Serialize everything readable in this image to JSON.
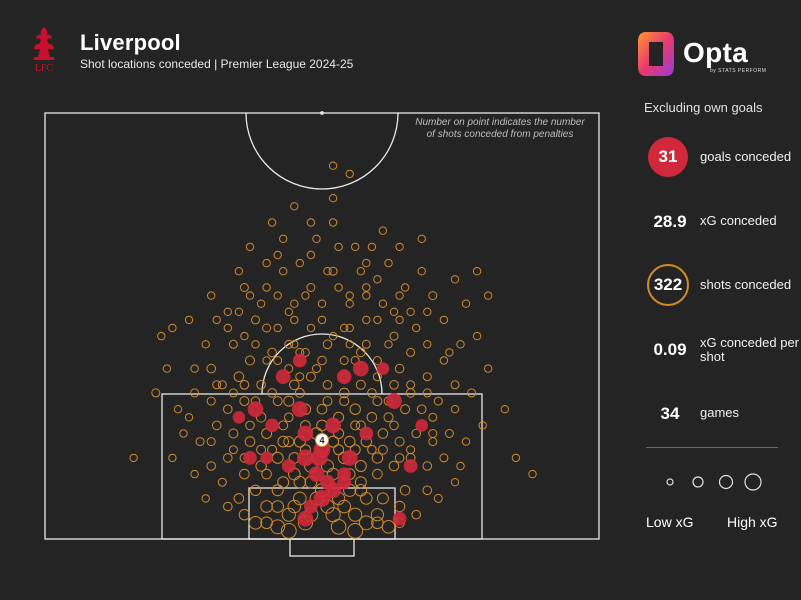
{
  "header": {
    "team": "Liverpool",
    "subtitle": "Shot locations conceded | Premier League 2024-25",
    "crest_text": "LFC"
  },
  "branding": {
    "name": "Opta",
    "tagline": "by STATS PERFORM"
  },
  "note": "Number on point indicates the number of shots conceded from penalties",
  "sidebar": {
    "header": "Excluding own goals",
    "stats": [
      {
        "value": "31",
        "label": "goals conceded"
      },
      {
        "value": "28.9",
        "label": "xG conceded"
      },
      {
        "value": "322",
        "label": "shots conceded"
      },
      {
        "value": "0.09",
        "label": "xG conceded per shot"
      },
      {
        "value": "34",
        "label": "games"
      }
    ],
    "legend": {
      "low": "Low xG",
      "high": "High xG"
    }
  },
  "colors": {
    "background": "#242424",
    "goal": "#d0293b",
    "shot": "#d08a2e",
    "lines": "#e8e8e8",
    "crest": "#c8102e"
  },
  "chart_data": {
    "type": "scatter",
    "title": "Liverpool",
    "subtitle": "Shot locations conceded | Premier League 2024-25",
    "penalty_shots": 4,
    "goals": [
      [
        54,
        20,
        0.25
      ],
      [
        46,
        16,
        0.3
      ],
      [
        50,
        11,
        0.4
      ],
      [
        49.5,
        10,
        0.35
      ],
      [
        47,
        10,
        0.4
      ],
      [
        47,
        13,
        0.3
      ],
      [
        44,
        9,
        0.2
      ],
      [
        55,
        10,
        0.3
      ],
      [
        63,
        17,
        0.3
      ],
      [
        58,
        13,
        0.2
      ],
      [
        52,
        6,
        0.3
      ],
      [
        47,
        2.5,
        0.3
      ],
      [
        50,
        5,
        0.35
      ],
      [
        54,
        7,
        0.2
      ],
      [
        38,
        16,
        0.3
      ],
      [
        41,
        14,
        0.2
      ],
      [
        43,
        20,
        0.25
      ],
      [
        37,
        10,
        0.2
      ],
      [
        40,
        10,
        0.15
      ],
      [
        35,
        15,
        0.15
      ],
      [
        46,
        22,
        0.2
      ],
      [
        61,
        21,
        0.15
      ],
      [
        68,
        14,
        0.15
      ],
      [
        66,
        9,
        0.2
      ],
      [
        64,
        2.5,
        0.2
      ],
      [
        57,
        21,
        0.3
      ],
      [
        54,
        8,
        0.2
      ],
      [
        48,
        4,
        0.2
      ],
      [
        52,
        14,
        0.3
      ],
      [
        51,
        7,
        0.25
      ],
      [
        49,
        8,
        0.3
      ]
    ],
    "shots": [
      [
        30,
        30,
        0.02
      ],
      [
        33,
        28,
        0.02
      ],
      [
        36,
        31,
        0.03
      ],
      [
        38,
        27,
        0.03
      ],
      [
        40,
        26,
        0.03
      ],
      [
        42,
        30,
        0.02
      ],
      [
        44,
        28,
        0.02
      ],
      [
        46,
        34,
        0.02
      ],
      [
        48,
        31,
        0.03
      ],
      [
        50,
        29,
        0.02
      ],
      [
        52,
        33,
        0.03
      ],
      [
        55,
        29,
        0.02
      ],
      [
        58,
        31,
        0.02
      ],
      [
        60,
        27,
        0.02
      ],
      [
        62,
        34,
        0.02
      ],
      [
        64,
        30,
        0.02
      ],
      [
        66,
        28,
        0.02
      ],
      [
        68,
        33,
        0.02
      ],
      [
        70,
        30,
        0.03
      ],
      [
        72,
        27,
        0.02
      ],
      [
        74,
        32,
        0.02
      ],
      [
        76,
        29,
        0.02
      ],
      [
        78,
        33,
        0.02
      ],
      [
        80,
        30,
        0.02
      ],
      [
        34,
        24,
        0.03
      ],
      [
        37,
        22,
        0.05
      ],
      [
        41,
        23,
        0.04
      ],
      [
        44,
        24,
        0.03
      ],
      [
        47,
        23,
        0.03
      ],
      [
        51,
        24,
        0.04
      ],
      [
        54,
        22,
        0.03
      ],
      [
        57,
        23,
        0.04
      ],
      [
        60,
        22,
        0.03
      ],
      [
        63,
        25,
        0.03
      ],
      [
        66,
        23,
        0.03
      ],
      [
        69,
        24,
        0.02
      ],
      [
        72,
        22,
        0.02
      ],
      [
        75,
        24,
        0.02
      ],
      [
        29,
        24,
        0.02
      ],
      [
        26,
        27,
        0.02
      ],
      [
        23,
        26,
        0.02
      ],
      [
        21,
        25,
        0.02
      ],
      [
        37,
        36,
        0.02
      ],
      [
        43,
        37,
        0.02
      ],
      [
        49,
        37,
        0.02
      ],
      [
        56,
        36,
        0.02
      ],
      [
        61,
        38,
        0.02
      ],
      [
        45,
        41,
        0.02
      ],
      [
        52,
        42,
        0.02
      ],
      [
        48,
        39,
        0.02
      ],
      [
        40,
        34,
        0.02
      ],
      [
        58,
        34,
        0.02
      ],
      [
        64,
        36,
        0.02
      ],
      [
        68,
        37,
        0.02
      ],
      [
        35,
        33,
        0.02
      ],
      [
        52,
        39,
        0.02
      ],
      [
        30,
        21,
        0.04
      ],
      [
        32,
        19,
        0.03
      ],
      [
        35,
        20,
        0.06
      ],
      [
        39,
        19,
        0.04
      ],
      [
        42,
        17,
        0.05
      ],
      [
        45,
        19,
        0.06
      ],
      [
        48,
        20,
        0.05
      ],
      [
        51,
        19,
        0.04
      ],
      [
        54,
        18,
        0.06
      ],
      [
        57,
        19,
        0.05
      ],
      [
        60,
        17,
        0.05
      ],
      [
        63,
        19,
        0.04
      ],
      [
        66,
        18,
        0.04
      ],
      [
        69,
        20,
        0.03
      ],
      [
        33,
        16,
        0.04
      ],
      [
        36,
        17,
        0.05
      ],
      [
        39,
        15,
        0.06
      ],
      [
        44,
        17,
        0.07
      ],
      [
        47,
        16,
        0.08
      ],
      [
        50,
        16,
        0.06
      ],
      [
        53,
        15,
        0.07
      ],
      [
        56,
        16,
        0.08
      ],
      [
        59,
        15,
        0.06
      ],
      [
        62,
        15,
        0.05
      ],
      [
        65,
        16,
        0.05
      ],
      [
        68,
        16,
        0.04
      ],
      [
        71,
        17,
        0.03
      ],
      [
        74,
        19,
        0.03
      ],
      [
        77,
        18,
        0.03
      ],
      [
        80,
        21,
        0.02
      ],
      [
        83,
        16,
        0.02
      ],
      [
        27,
        18,
        0.03
      ],
      [
        24,
        16,
        0.02
      ],
      [
        20,
        18,
        0.03
      ],
      [
        31,
        14,
        0.04
      ],
      [
        34,
        13,
        0.05
      ],
      [
        37,
        12,
        0.06
      ],
      [
        40,
        13,
        0.07
      ],
      [
        43,
        12,
        0.09
      ],
      [
        46,
        12,
        0.1
      ],
      [
        49,
        13,
        0.12
      ],
      [
        52,
        12,
        0.1
      ],
      [
        55,
        12,
        0.09
      ],
      [
        58,
        12,
        0.08
      ],
      [
        61,
        13,
        0.06
      ],
      [
        64,
        12,
        0.05
      ],
      [
        67,
        13,
        0.04
      ],
      [
        70,
        12,
        0.03
      ],
      [
        73,
        13,
        0.03
      ],
      [
        76,
        12,
        0.02
      ],
      [
        79,
        14,
        0.02
      ],
      [
        28,
        12,
        0.03
      ],
      [
        25,
        13,
        0.02
      ],
      [
        30,
        9,
        0.04
      ],
      [
        33,
        10,
        0.04
      ],
      [
        36,
        8,
        0.06
      ],
      [
        39,
        9,
        0.08
      ],
      [
        42,
        10,
        0.1
      ],
      [
        45,
        8,
        0.12
      ],
      [
        48,
        9,
        0.15
      ],
      [
        51,
        9,
        0.13
      ],
      [
        54,
        10,
        0.12
      ],
      [
        57,
        9,
        0.1
      ],
      [
        60,
        10,
        0.08
      ],
      [
        63,
        9,
        0.06
      ],
      [
        66,
        10,
        0.05
      ],
      [
        69,
        9,
        0.04
      ],
      [
        72,
        10,
        0.03
      ],
      [
        75,
        9,
        0.02
      ],
      [
        27,
        8,
        0.02
      ],
      [
        23,
        10,
        0.02
      ],
      [
        38,
        6,
        0.08
      ],
      [
        42,
        6,
        0.1
      ],
      [
        46,
        5,
        0.15
      ],
      [
        50,
        6,
        0.18
      ],
      [
        53,
        5,
        0.14
      ],
      [
        57,
        6,
        0.12
      ],
      [
        61,
        5,
        0.1
      ],
      [
        65,
        6,
        0.06
      ],
      [
        69,
        6,
        0.04
      ],
      [
        35,
        5,
        0.06
      ],
      [
        40,
        4,
        0.12
      ],
      [
        44,
        3,
        0.18
      ],
      [
        48,
        3,
        0.2
      ],
      [
        52,
        3,
        0.22
      ],
      [
        56,
        3,
        0.18
      ],
      [
        60,
        3,
        0.14
      ],
      [
        64,
        4,
        0.08
      ],
      [
        38,
        2,
        0.15
      ],
      [
        42,
        1.5,
        0.2
      ],
      [
        58,
        2,
        0.2
      ],
      [
        62,
        1.5,
        0.15
      ],
      [
        44,
        1,
        0.25
      ],
      [
        56,
        1,
        0.25
      ],
      [
        32,
        7,
        0.03
      ],
      [
        29,
        5,
        0.02
      ],
      [
        71,
        5,
        0.03
      ],
      [
        74,
        7,
        0.02
      ],
      [
        85,
        10,
        0.02
      ],
      [
        88,
        8,
        0.02
      ],
      [
        16,
        10,
        0.02
      ],
      [
        41,
        11,
        0.05
      ],
      [
        59,
        11,
        0.04
      ],
      [
        47,
        14,
        0.06
      ],
      [
        53,
        13,
        0.07
      ],
      [
        44,
        15,
        0.04
      ],
      [
        56,
        14,
        0.05
      ],
      [
        50,
        14,
        0.09
      ],
      [
        36,
        19,
        0.04
      ],
      [
        64,
        21,
        0.04
      ],
      [
        42,
        22,
        0.03
      ],
      [
        58,
        24,
        0.03
      ],
      [
        48,
        26,
        0.02
      ],
      [
        52,
        25,
        0.02
      ],
      [
        55,
        26,
        0.02
      ],
      [
        45,
        27,
        0.02
      ],
      [
        61,
        29,
        0.02
      ],
      [
        39,
        29,
        0.02
      ],
      [
        33,
        26,
        0.02
      ],
      [
        67,
        26,
        0.02
      ],
      [
        57,
        33,
        0.02
      ],
      [
        43,
        33,
        0.02
      ],
      [
        52,
        46,
        0.02
      ],
      [
        40,
        22,
        0.02
      ],
      [
        46,
        20,
        0.03
      ],
      [
        54,
        20,
        0.03
      ],
      [
        60,
        20,
        0.03
      ],
      [
        38,
        24,
        0.02
      ],
      [
        62,
        24,
        0.02
      ],
      [
        47,
        30,
        0.02
      ],
      [
        53,
        31,
        0.02
      ],
      [
        35,
        28,
        0.02
      ],
      [
        65,
        31,
        0.02
      ],
      [
        44,
        21,
        0.03
      ],
      [
        56,
        22,
        0.03
      ],
      [
        50,
        22,
        0.04
      ],
      [
        51,
        33,
        0.02
      ],
      [
        59,
        36,
        0.02
      ],
      [
        41,
        39,
        0.02
      ],
      [
        55,
        45,
        0.02
      ],
      [
        47,
        11,
        0.07
      ],
      [
        53,
        11,
        0.07
      ],
      [
        45,
        10,
        0.09
      ],
      [
        55,
        8,
        0.09
      ],
      [
        50,
        11,
        0.1
      ],
      [
        43,
        7,
        0.1
      ],
      [
        57,
        7,
        0.1
      ],
      [
        40,
        8,
        0.06
      ],
      [
        60,
        8,
        0.06
      ],
      [
        34,
        11,
        0.03
      ],
      [
        66,
        11,
        0.03
      ],
      [
        37,
        14,
        0.04
      ],
      [
        63,
        14,
        0.04
      ],
      [
        30,
        17,
        0.03
      ],
      [
        70,
        15,
        0.03
      ],
      [
        27,
        21,
        0.02
      ],
      [
        73,
        23,
        0.02
      ],
      [
        31,
        27,
        0.02
      ],
      [
        69,
        28,
        0.02
      ],
      [
        36,
        25,
        0.02
      ],
      [
        64,
        27,
        0.02
      ],
      [
        42,
        26,
        0.02
      ],
      [
        58,
        27,
        0.02
      ],
      [
        45,
        24,
        0.02
      ],
      [
        55,
        24,
        0.02
      ],
      [
        49,
        21,
        0.03
      ],
      [
        51,
        17,
        0.05
      ],
      [
        46,
        18,
        0.05
      ],
      [
        54,
        17,
        0.05
      ],
      [
        41,
        18,
        0.04
      ],
      [
        59,
        18,
        0.04
      ],
      [
        38,
        17,
        0.04
      ],
      [
        62,
        17,
        0.04
      ],
      [
        34,
        18,
        0.03
      ],
      [
        66,
        19,
        0.03
      ],
      [
        31,
        19,
        0.03
      ],
      [
        69,
        18,
        0.03
      ],
      [
        43,
        14,
        0.05
      ],
      [
        57,
        14,
        0.05
      ],
      [
        39,
        11,
        0.05
      ],
      [
        61,
        11,
        0.05
      ],
      [
        46,
        7,
        0.12
      ],
      [
        54,
        4,
        0.15
      ],
      [
        49,
        5,
        0.16
      ],
      [
        42,
        4,
        0.12
      ],
      [
        58,
        5,
        0.12
      ],
      [
        36,
        3,
        0.08
      ],
      [
        64,
        2,
        0.06
      ],
      [
        33,
        4,
        0.04
      ],
      [
        67,
        3,
        0.04
      ],
      [
        40,
        2,
        0.12
      ],
      [
        60,
        2,
        0.12
      ],
      [
        47,
        2,
        0.22
      ],
      [
        53,
        1.5,
        0.24
      ],
      [
        45,
        4,
        0.15
      ],
      [
        55,
        6,
        0.14
      ],
      [
        51,
        4,
        0.18
      ],
      [
        48,
        7,
        0.12
      ],
      [
        52,
        8,
        0.12
      ],
      [
        44,
        12,
        0.07
      ],
      [
        56,
        11,
        0.07
      ],
      [
        36,
        10,
        0.04
      ],
      [
        64,
        10,
        0.04
      ],
      [
        30,
        12,
        0.03
      ],
      [
        70,
        13,
        0.03
      ],
      [
        26,
        15,
        0.02
      ],
      [
        74,
        16,
        0.02
      ],
      [
        22,
        21,
        0.02
      ],
      [
        78,
        25,
        0.02
      ],
      [
        45,
        29,
        0.02
      ],
      [
        55,
        30,
        0.02
      ],
      [
        40,
        31,
        0.02
      ],
      [
        60,
        32,
        0.02
      ],
      [
        48,
        35,
        0.02
      ],
      [
        53,
        36,
        0.02
      ],
      [
        50,
        27,
        0.02
      ],
      [
        37,
        30,
        0.02
      ],
      [
        63,
        28,
        0.02
      ],
      [
        42,
        35,
        0.02
      ],
      [
        58,
        30,
        0.02
      ],
      [
        46,
        23,
        0.03
      ],
      [
        54,
        26,
        0.02
      ]
    ],
    "legend": {
      "low": "Low xG",
      "high": "High xG"
    }
  }
}
